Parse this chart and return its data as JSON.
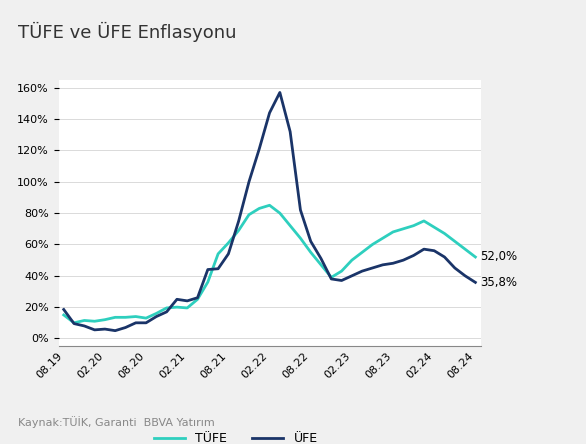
{
  "title": "TÜFE ve ÜFE Enflasyonu",
  "source": "Kaynak:TÜİK, Garanti  BBVA Yatırım",
  "background_color": "#f0f0f0",
  "plot_background": "#ffffff",
  "tufe_color": "#2ecfbe",
  "ufe_color": "#1a3468",
  "ylim": [
    -5,
    165
  ],
  "yticks": [
    0,
    20,
    40,
    60,
    80,
    100,
    120,
    140,
    160
  ],
  "legend_labels": [
    "TÜFE",
    "ÜFE"
  ],
  "annotation_tufe": "52,0%",
  "annotation_ufe": "35,8%",
  "x_labels": [
    "08.19",
    "02.20",
    "08.20",
    "02.21",
    "08.21",
    "02.22",
    "08.22",
    "02.23",
    "08.23",
    "02.24",
    "08.24"
  ],
  "tufe_data": [
    [
      0,
      15.0
    ],
    [
      1,
      10.0
    ],
    [
      2,
      11.5
    ],
    [
      3,
      11.0
    ],
    [
      4,
      12.0
    ],
    [
      5,
      13.5
    ],
    [
      6,
      13.5
    ],
    [
      7,
      14.0
    ],
    [
      8,
      13.0
    ],
    [
      9,
      16.0
    ],
    [
      10,
      19.5
    ],
    [
      11,
      20.0
    ],
    [
      12,
      19.5
    ],
    [
      13,
      25.0
    ],
    [
      14,
      36.0
    ],
    [
      15,
      54.0
    ],
    [
      16,
      61.0
    ],
    [
      17,
      69.0
    ],
    [
      18,
      79.0
    ],
    [
      19,
      83.0
    ],
    [
      20,
      85.0
    ],
    [
      21,
      80.0
    ],
    [
      22,
      72.0
    ],
    [
      23,
      64.0
    ],
    [
      24,
      55.0
    ],
    [
      25,
      47.0
    ],
    [
      26,
      39.0
    ],
    [
      27,
      43.0
    ],
    [
      28,
      50.0
    ],
    [
      29,
      55.0
    ],
    [
      30,
      60.0
    ],
    [
      31,
      64.0
    ],
    [
      32,
      68.0
    ],
    [
      33,
      70.0
    ],
    [
      34,
      72.0
    ],
    [
      35,
      75.0
    ],
    [
      36,
      71.0
    ],
    [
      37,
      67.0
    ],
    [
      38,
      62.0
    ],
    [
      39,
      57.0
    ],
    [
      40,
      52.0
    ]
  ],
  "ufe_data": [
    [
      0,
      18.5
    ],
    [
      1,
      9.5
    ],
    [
      2,
      8.0
    ],
    [
      3,
      5.5
    ],
    [
      4,
      6.0
    ],
    [
      5,
      5.0
    ],
    [
      6,
      7.0
    ],
    [
      7,
      10.0
    ],
    [
      8,
      10.0
    ],
    [
      9,
      14.0
    ],
    [
      10,
      17.0
    ],
    [
      11,
      25.0
    ],
    [
      12,
      24.0
    ],
    [
      13,
      26.0
    ],
    [
      14,
      44.0
    ],
    [
      15,
      44.5
    ],
    [
      16,
      54.0
    ],
    [
      17,
      75.0
    ],
    [
      18,
      100.0
    ],
    [
      19,
      121.0
    ],
    [
      20,
      144.0
    ],
    [
      21,
      157.0
    ],
    [
      22,
      132.0
    ],
    [
      23,
      82.0
    ],
    [
      24,
      62.0
    ],
    [
      25,
      51.0
    ],
    [
      26,
      38.0
    ],
    [
      27,
      37.0
    ],
    [
      28,
      40.0
    ],
    [
      29,
      43.0
    ],
    [
      30,
      45.0
    ],
    [
      31,
      47.0
    ],
    [
      32,
      48.0
    ],
    [
      33,
      50.0
    ],
    [
      34,
      53.0
    ],
    [
      35,
      57.0
    ],
    [
      36,
      56.0
    ],
    [
      37,
      52.0
    ],
    [
      38,
      45.0
    ],
    [
      39,
      40.0
    ],
    [
      40,
      35.8
    ]
  ]
}
